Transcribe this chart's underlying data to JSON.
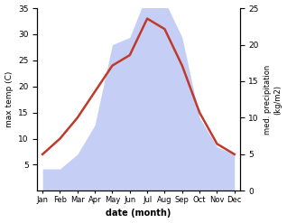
{
  "months": [
    "Jan",
    "Feb",
    "Mar",
    "Apr",
    "May",
    "Jun",
    "Jul",
    "Aug",
    "Sep",
    "Oct",
    "Nov",
    "Dec"
  ],
  "temp": [
    7,
    10,
    14,
    19,
    24,
    26,
    33,
    31,
    24,
    15,
    9,
    7
  ],
  "precip": [
    3,
    3,
    5,
    9,
    20,
    21,
    27,
    26,
    21,
    10,
    6,
    5
  ],
  "temp_color": "#c0392b",
  "precip_fill_color": "#c5cff5",
  "temp_ylim": [
    0,
    35
  ],
  "precip_ylim": [
    0,
    25
  ],
  "temp_yticks": [
    5,
    10,
    15,
    20,
    25,
    30,
    35
  ],
  "precip_yticks": [
    0,
    5,
    10,
    15,
    20,
    25
  ],
  "ylabel_left": "max temp (C)",
  "ylabel_right": "med. precipitation\n(kg/m2)",
  "xlabel": "date (month)",
  "bg_color": "#ffffff",
  "line_width": 1.8,
  "figsize": [
    3.18,
    2.47
  ],
  "dpi": 100
}
